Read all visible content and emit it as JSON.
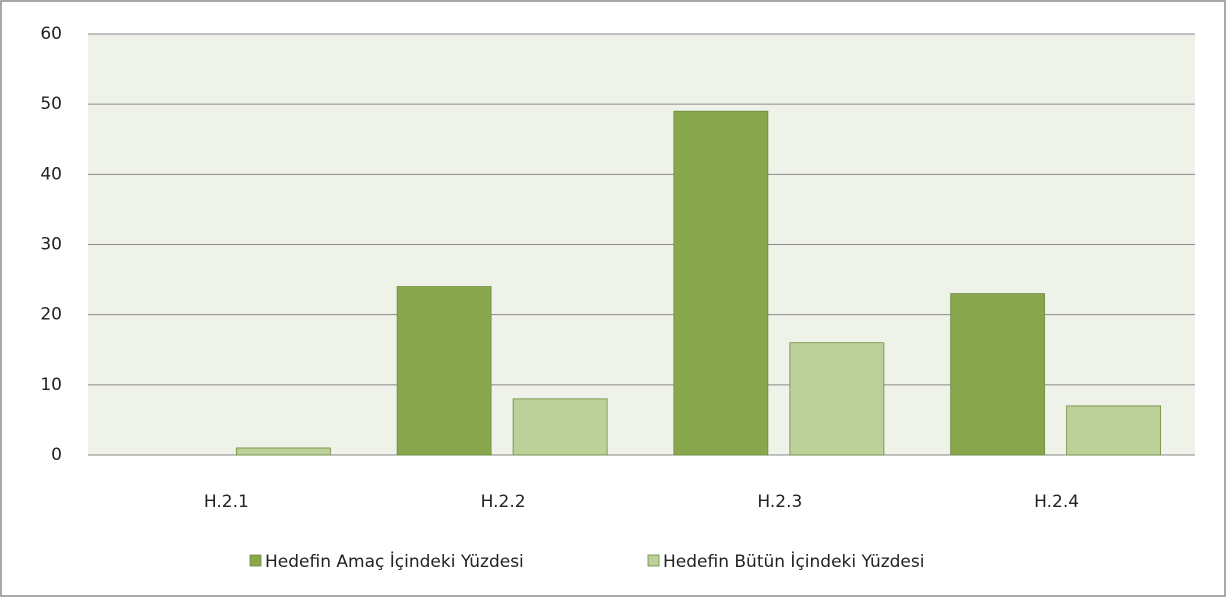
{
  "chart_data": {
    "type": "bar",
    "categories": [
      "H.2.1",
      "H.2.2",
      "H.2.3",
      "H.2.4"
    ],
    "series": [
      {
        "name": "Hedefin Amaç İçindeki Yüzdesi",
        "color": "#88a64c",
        "values": [
          0,
          24,
          49,
          23
        ]
      },
      {
        "name": "Hedefin Bütün İçindeki Yüzdesi",
        "color": "#bcd19a",
        "values": [
          1,
          8,
          16,
          7
        ]
      }
    ],
    "ylim": [
      0,
      60
    ],
    "yticks": [
      0,
      10,
      20,
      30,
      40,
      50,
      60
    ],
    "grid": true,
    "legend": "bottom"
  }
}
